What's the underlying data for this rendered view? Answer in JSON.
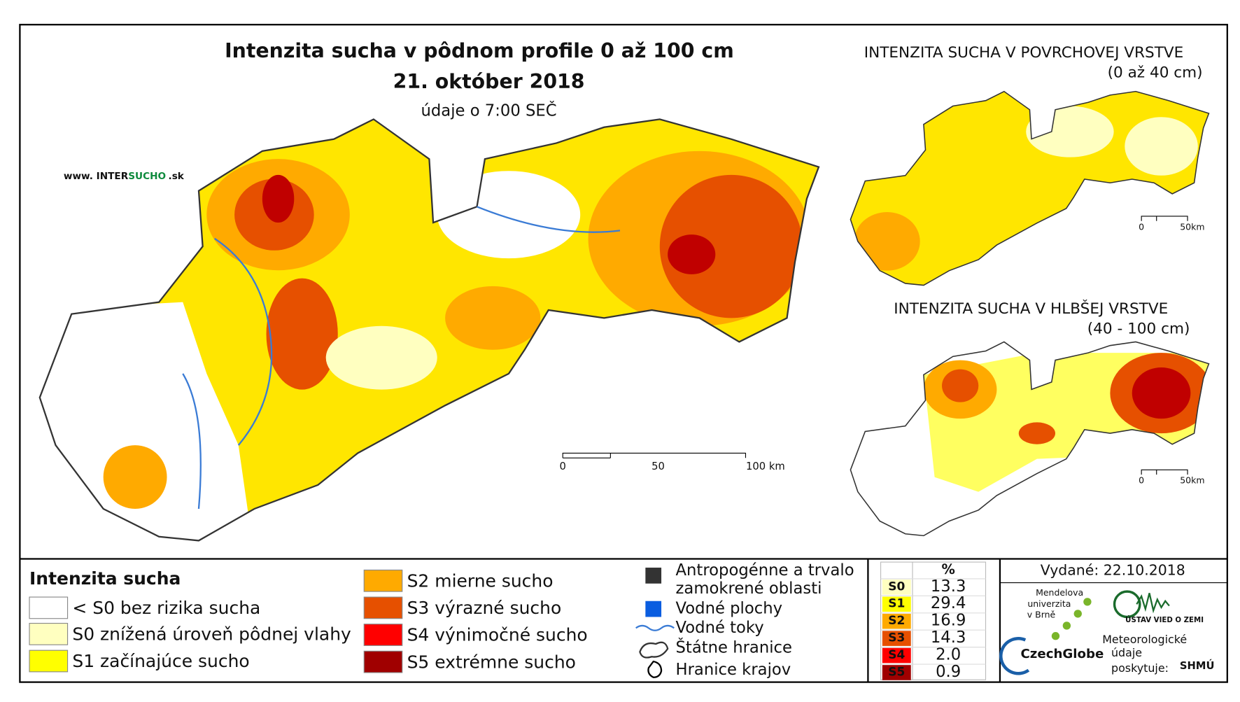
{
  "title": "Intenzita sucha v pôdnom profile 0 až 100 cm",
  "date": "21. október 2018",
  "time_note": "údaje o 7:00 SEČ",
  "website": {
    "prefix": "www. INTER",
    "highlight": "SUCHO",
    "suffix": ".sk"
  },
  "main_scale": [
    "0",
    "50",
    "100 km"
  ],
  "insets": [
    {
      "title": "INTENZITA SUCHA V POVRCHOVEJ VRSTVE",
      "subtitle": "(0 až 40 cm)",
      "scale": [
        "0",
        "50km"
      ]
    },
    {
      "title": "INTENZITA SUCHA V HLBŠEJ VRSTVE",
      "subtitle": "(40 - 100 cm)",
      "scale": [
        "0",
        "50km"
      ]
    }
  ],
  "legend": {
    "title": "Intenzita sucha",
    "items": [
      {
        "color": "#ffffff",
        "label": "< S0 bez rizika sucha"
      },
      {
        "color": "#ffffc0",
        "label": "S0 znížená úroveň pôdnej vlahy"
      },
      {
        "color": "#ffff00",
        "label": "S1 začínajúce sucho"
      },
      {
        "color": "#ffaa00",
        "label": "S2 mierne sucho"
      },
      {
        "color": "#e65000",
        "label": "S3 výrazné sucho"
      },
      {
        "color": "#ff0000",
        "label": "S4 výnimočné sucho"
      },
      {
        "color": "#a00000",
        "label": "S5 extrémne sucho"
      }
    ],
    "other": {
      "anthropogenic": [
        "Antropogénne a trvalo",
        "zamokrené oblasti"
      ],
      "water_bodies": "Vodné plochy",
      "rivers": "Vodné toky",
      "border": "Štátne hranice",
      "regions": "Hranice krajov"
    }
  },
  "stats": {
    "header": "%",
    "rows": [
      {
        "code": "S0",
        "value": 13.3,
        "color": "#ffffc0"
      },
      {
        "code": "S1",
        "value": 29.4,
        "color": "#ffff00"
      },
      {
        "code": "S2",
        "value": 16.9,
        "color": "#ffaa00"
      },
      {
        "code": "S3",
        "value": 14.3,
        "color": "#e65000"
      },
      {
        "code": "S4",
        "value": 2.0,
        "value_label": "2.0",
        "color": "#ff0000"
      },
      {
        "code": "S5",
        "value": 0.9,
        "color": "#a00000"
      }
    ]
  },
  "issued": "Vydané: 22.10.2018",
  "logos": {
    "mendel": [
      "Mendelova",
      "univerzita",
      "v Brně"
    ],
    "czechglobe": "CzechGlobe",
    "uvz": "ÚSTAV VIED O ZEMI",
    "meteo": [
      "Meteorologické",
      "údaje",
      "poskytuje:"
    ],
    "shmu": "SHMÚ"
  }
}
